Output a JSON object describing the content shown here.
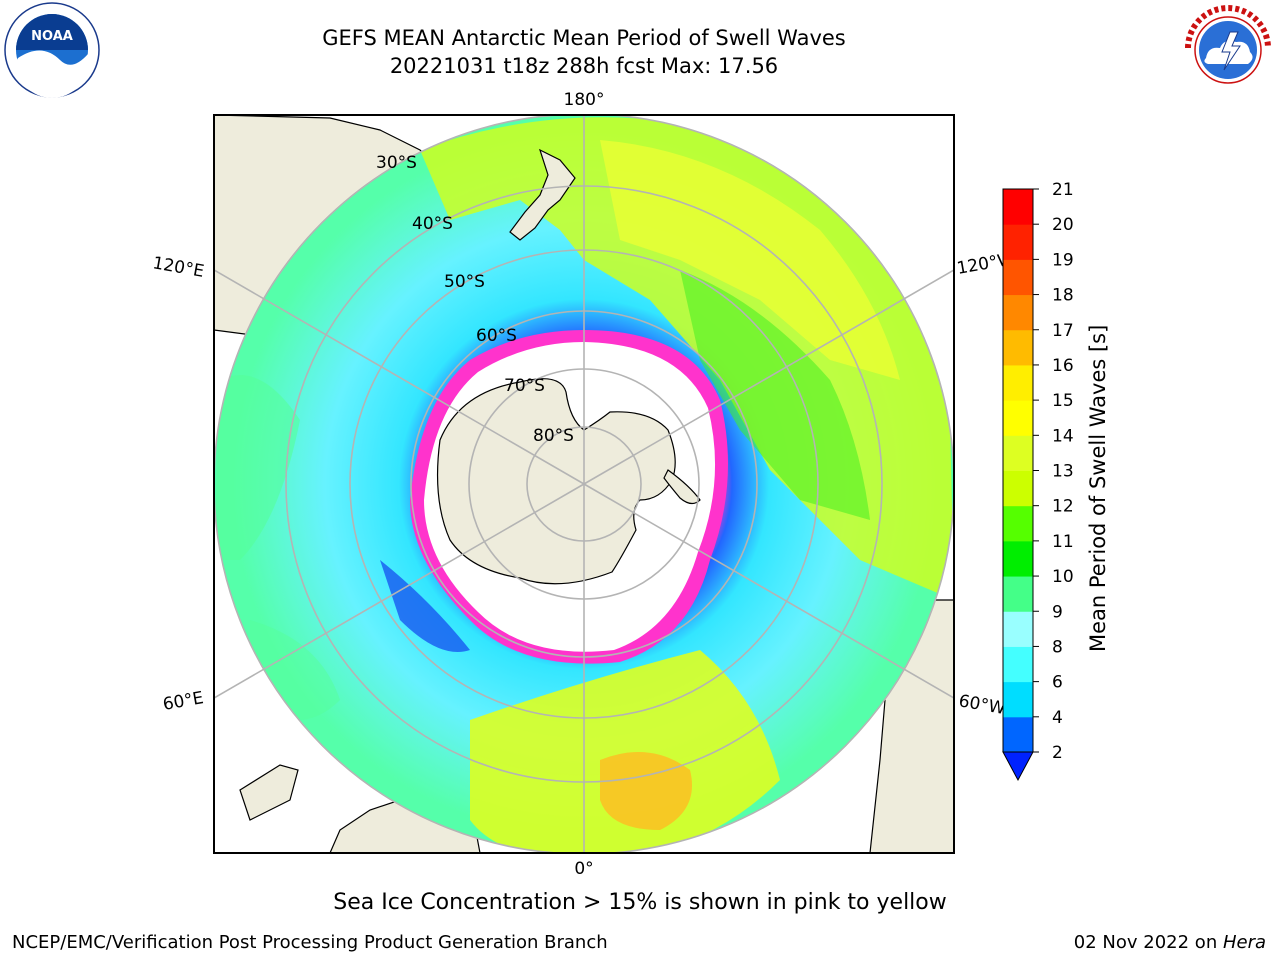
{
  "header": {
    "title_line1": "GEFS MEAN Antarctic Mean Period of Swell Waves",
    "title_line2": "20221031 t18z 288h fcst   Max: 17.56"
  },
  "logos": {
    "left": "NOAA",
    "left_ring_text": "NATIONAL OCEANIC AND ATMOSPHERIC ADMINISTRATION · U.S. DEPARTMENT OF COMMERCE",
    "right_ring_text": "NATIONAL WEATHER SERVICE"
  },
  "map": {
    "longitude_labels": {
      "top": "180°",
      "bottom": "0°",
      "left_upper": "120°E",
      "left_lower": "60°E",
      "right_upper": "120°W",
      "right_lower": "60°W"
    },
    "latitude_labels": [
      "30°S",
      "40°S",
      "50°S",
      "60°S",
      "70°S",
      "80°S"
    ],
    "colors": {
      "land": "#eeecdc",
      "grid": "#b4b4b4"
    }
  },
  "colorbar": {
    "label": "Mean Period of Swell Waves [s]",
    "ticks": [
      "2",
      "4",
      "6",
      "8",
      "9",
      "10",
      "11",
      "12",
      "13",
      "14",
      "15",
      "16",
      "17",
      "18",
      "19",
      "20",
      "21"
    ],
    "colors": [
      "#0066ff",
      "#00ddff",
      "#44ffff",
      "#99ffff",
      "#44ff88",
      "#00ee00",
      "#55ff00",
      "#ccff00",
      "#ddff22",
      "#ffff00",
      "#ffee00",
      "#ffbb00",
      "#ff8800",
      "#ff5500",
      "#ff2200",
      "#ff0000"
    ],
    "extend_color": "#0022ff"
  },
  "caption": "Sea Ice Concentration > 15% is shown in pink to yellow",
  "footer": {
    "left": "NCEP/EMC/Verification Post Processing Product Generation Branch",
    "right_prefix": "02 Nov 2022 on ",
    "right_host": "Hera"
  }
}
